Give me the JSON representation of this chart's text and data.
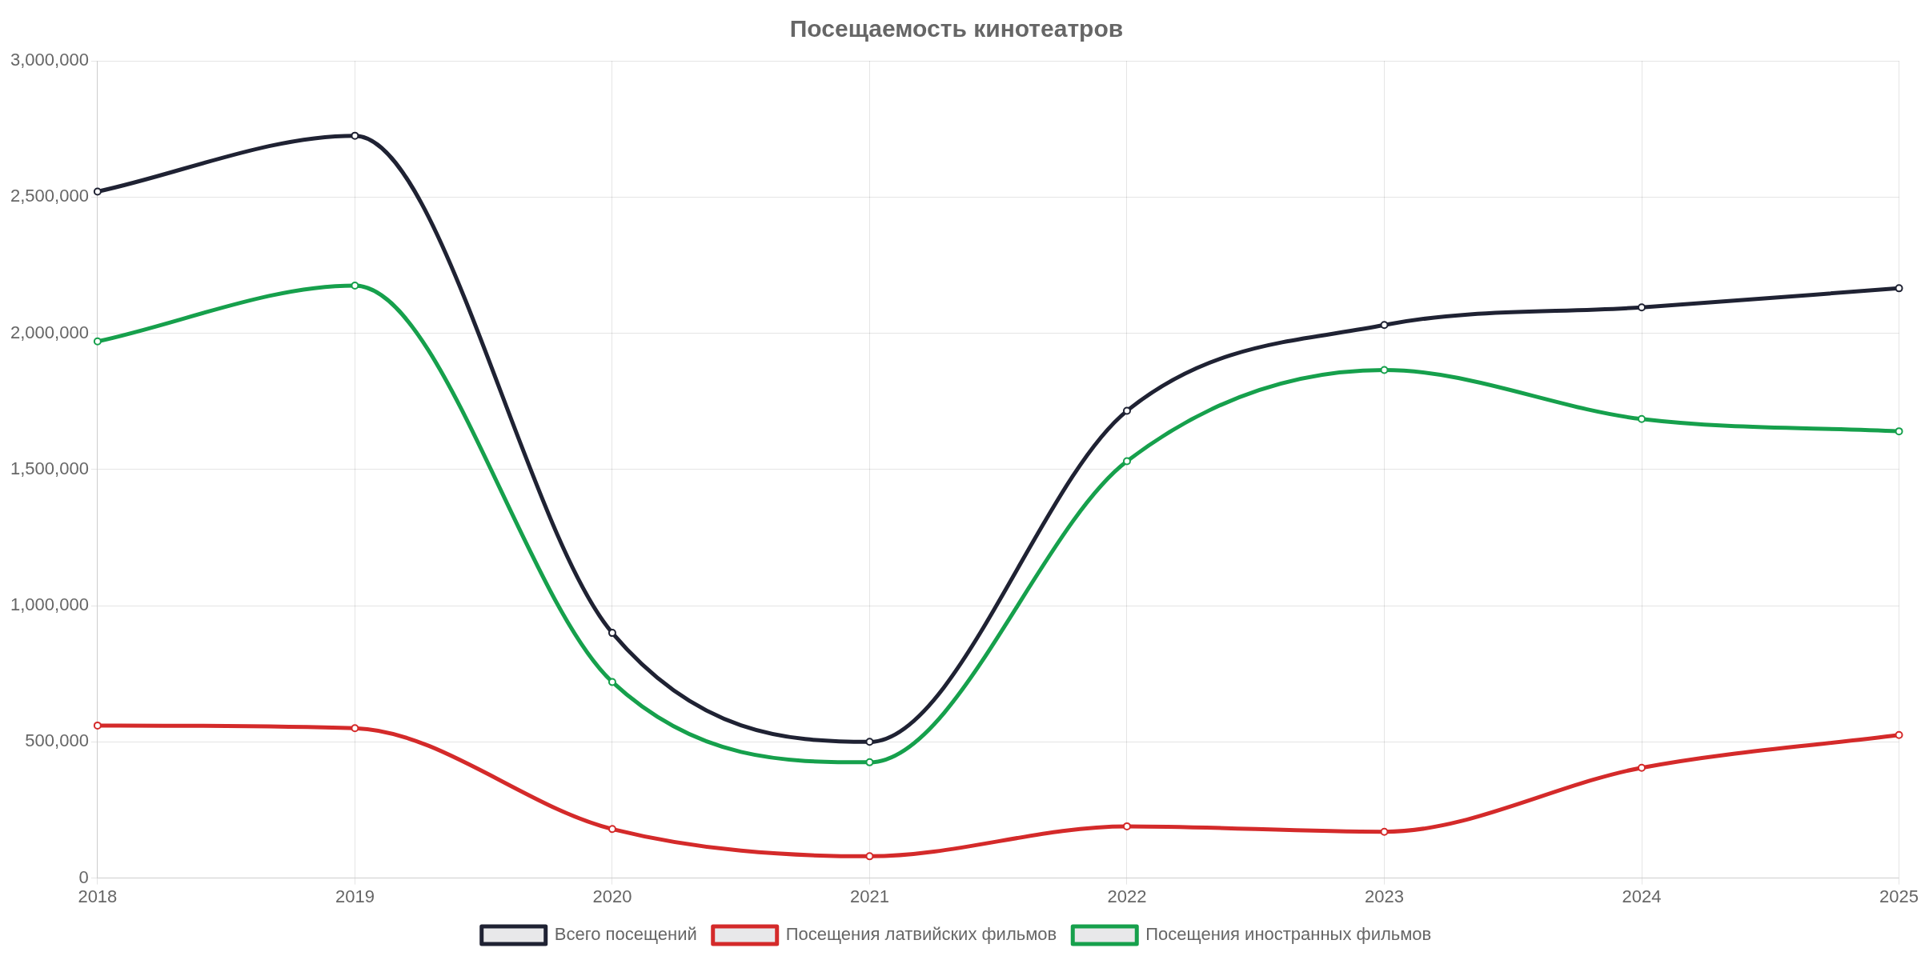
{
  "chart_data": {
    "type": "line",
    "title": "Посещаемость кинотеатров",
    "categories": [
      "2018",
      "2019",
      "2020",
      "2021",
      "2022",
      "2023",
      "2024",
      "2025"
    ],
    "series": [
      {
        "name": "Всего посещений",
        "color": "#1f2233",
        "values": [
          2520000,
          2725000,
          900000,
          500000,
          1715000,
          2030000,
          2095000,
          2165000
        ]
      },
      {
        "name": "Посещения латвийских фильмов",
        "color": "#d42a2a",
        "values": [
          560000,
          550000,
          180000,
          80000,
          190000,
          170000,
          405000,
          525000
        ]
      },
      {
        "name": "Посещения иностранных фильмов",
        "color": "#16a04c",
        "values": [
          1970000,
          2175000,
          720000,
          425000,
          1530000,
          1865000,
          1685000,
          1640000
        ]
      }
    ],
    "ylim": [
      0,
      3000000
    ],
    "yticks": [
      0,
      {
        "value": 500000,
        "label": "500,000"
      },
      {
        "value": 1000000,
        "label": "1,000,000"
      },
      {
        "value": 1500000,
        "label": "1,500,000"
      },
      {
        "value": 2000000,
        "label": "2,000,000"
      },
      {
        "value": 2500000,
        "label": "2,500,000"
      },
      {
        "value": 3000000,
        "label": "3,000,000"
      }
    ],
    "grid": true,
    "legend": "bottom",
    "marker": "circle",
    "line_style": "solid"
  }
}
